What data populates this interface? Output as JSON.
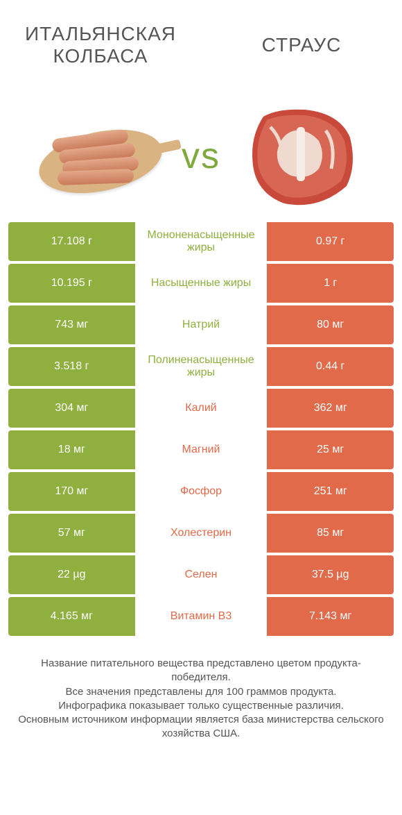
{
  "header": {
    "left_title": "ИТАЛЬЯНСКАЯ КОЛБАСА",
    "right_title": "СТРАУС",
    "vs_label": "vs"
  },
  "colors": {
    "green": "#8fb03f",
    "orange": "#e06a4a",
    "text": "#555555",
    "white": "#ffffff"
  },
  "table": {
    "rows": [
      {
        "left": "17.108 г",
        "label": "Мононенасыщенные жиры",
        "right": "0.97 г",
        "winner": "left"
      },
      {
        "left": "10.195 г",
        "label": "Насыщенные жиры",
        "right": "1 г",
        "winner": "left"
      },
      {
        "left": "743 мг",
        "label": "Натрий",
        "right": "80 мг",
        "winner": "left"
      },
      {
        "left": "3.518 г",
        "label": "Полиненасыщенные жиры",
        "right": "0.44 г",
        "winner": "left"
      },
      {
        "left": "304 мг",
        "label": "Калий",
        "right": "362 мг",
        "winner": "right"
      },
      {
        "left": "18 мг",
        "label": "Магний",
        "right": "25 мг",
        "winner": "right"
      },
      {
        "left": "170 мг",
        "label": "Фосфор",
        "right": "251 мг",
        "winner": "right"
      },
      {
        "left": "57 мг",
        "label": "Холестерин",
        "right": "85 мг",
        "winner": "right"
      },
      {
        "left": "22 µg",
        "label": "Селен",
        "right": "37.5 µg",
        "winner": "right"
      },
      {
        "left": "4.165 мг",
        "label": "Витамин B3",
        "right": "7.143 мг",
        "winner": "right"
      }
    ]
  },
  "footer": {
    "lines": [
      "Название питательного вещества представлено цветом продукта-победителя.",
      "Все значения представлены для 100 граммов продукта.",
      "Инфографика показывает только существенные различия.",
      "Основным источником информации является база министерства сельского хозяйства США."
    ]
  }
}
